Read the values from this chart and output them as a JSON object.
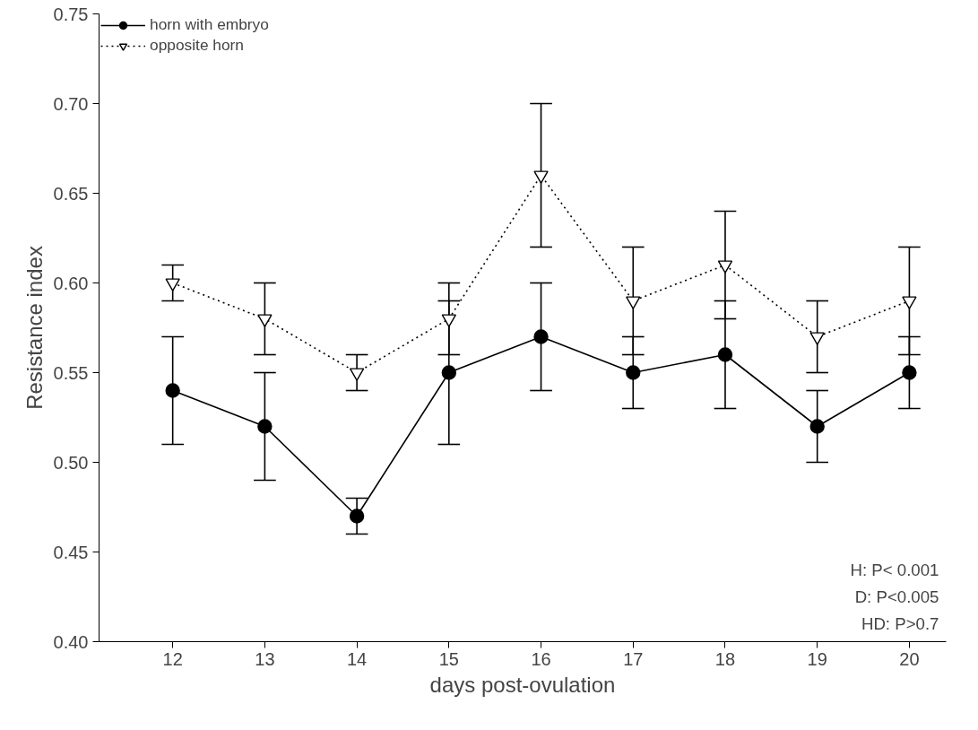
{
  "chart_data": {
    "type": "line",
    "xlabel": "days post-ovulation",
    "ylabel": "Resistance index",
    "x": [
      12,
      13,
      14,
      15,
      16,
      17,
      18,
      19,
      20
    ],
    "series": [
      {
        "name": "horn with embryo",
        "color": "#000000",
        "marker": "circle",
        "line_style": "solid",
        "values": [
          0.54,
          0.52,
          0.47,
          0.55,
          0.57,
          0.55,
          0.56,
          0.52,
          0.55
        ],
        "errors": [
          0.03,
          0.03,
          0.01,
          0.04,
          0.03,
          0.02,
          0.03,
          0.02,
          0.02
        ]
      },
      {
        "name": "opposite horn",
        "color": "#000000",
        "marker": "triangle",
        "line_style": "dotted",
        "values": [
          0.6,
          0.58,
          0.55,
          0.58,
          0.66,
          0.59,
          0.61,
          0.57,
          0.59
        ],
        "errors": [
          0.01,
          0.02,
          0.01,
          0.02,
          0.04,
          0.03,
          0.03,
          0.02,
          0.03
        ]
      }
    ],
    "xlim": [
      11.2,
      20.4
    ],
    "xticks": [
      12,
      13,
      14,
      15,
      16,
      17,
      18,
      19,
      20
    ],
    "ylim": [
      0.4,
      0.75
    ],
    "yticks": [
      {
        "value": 0.4,
        "label": "0.40"
      },
      {
        "value": 0.45,
        "label": "0.45"
      },
      {
        "value": 0.5,
        "label": "0.50"
      },
      {
        "value": 0.55,
        "label": "0.55"
      },
      {
        "value": 0.6,
        "label": "0.60"
      },
      {
        "value": 0.65,
        "label": "0.65"
      },
      {
        "value": 0.7,
        "label": "0.70"
      },
      {
        "value": 0.75,
        "label": "0.75"
      }
    ],
    "grid": false,
    "legend": "top left",
    "annotations": [
      "H: P< 0.001",
      "D: P<0.005",
      "HD: P>0.7"
    ]
  }
}
